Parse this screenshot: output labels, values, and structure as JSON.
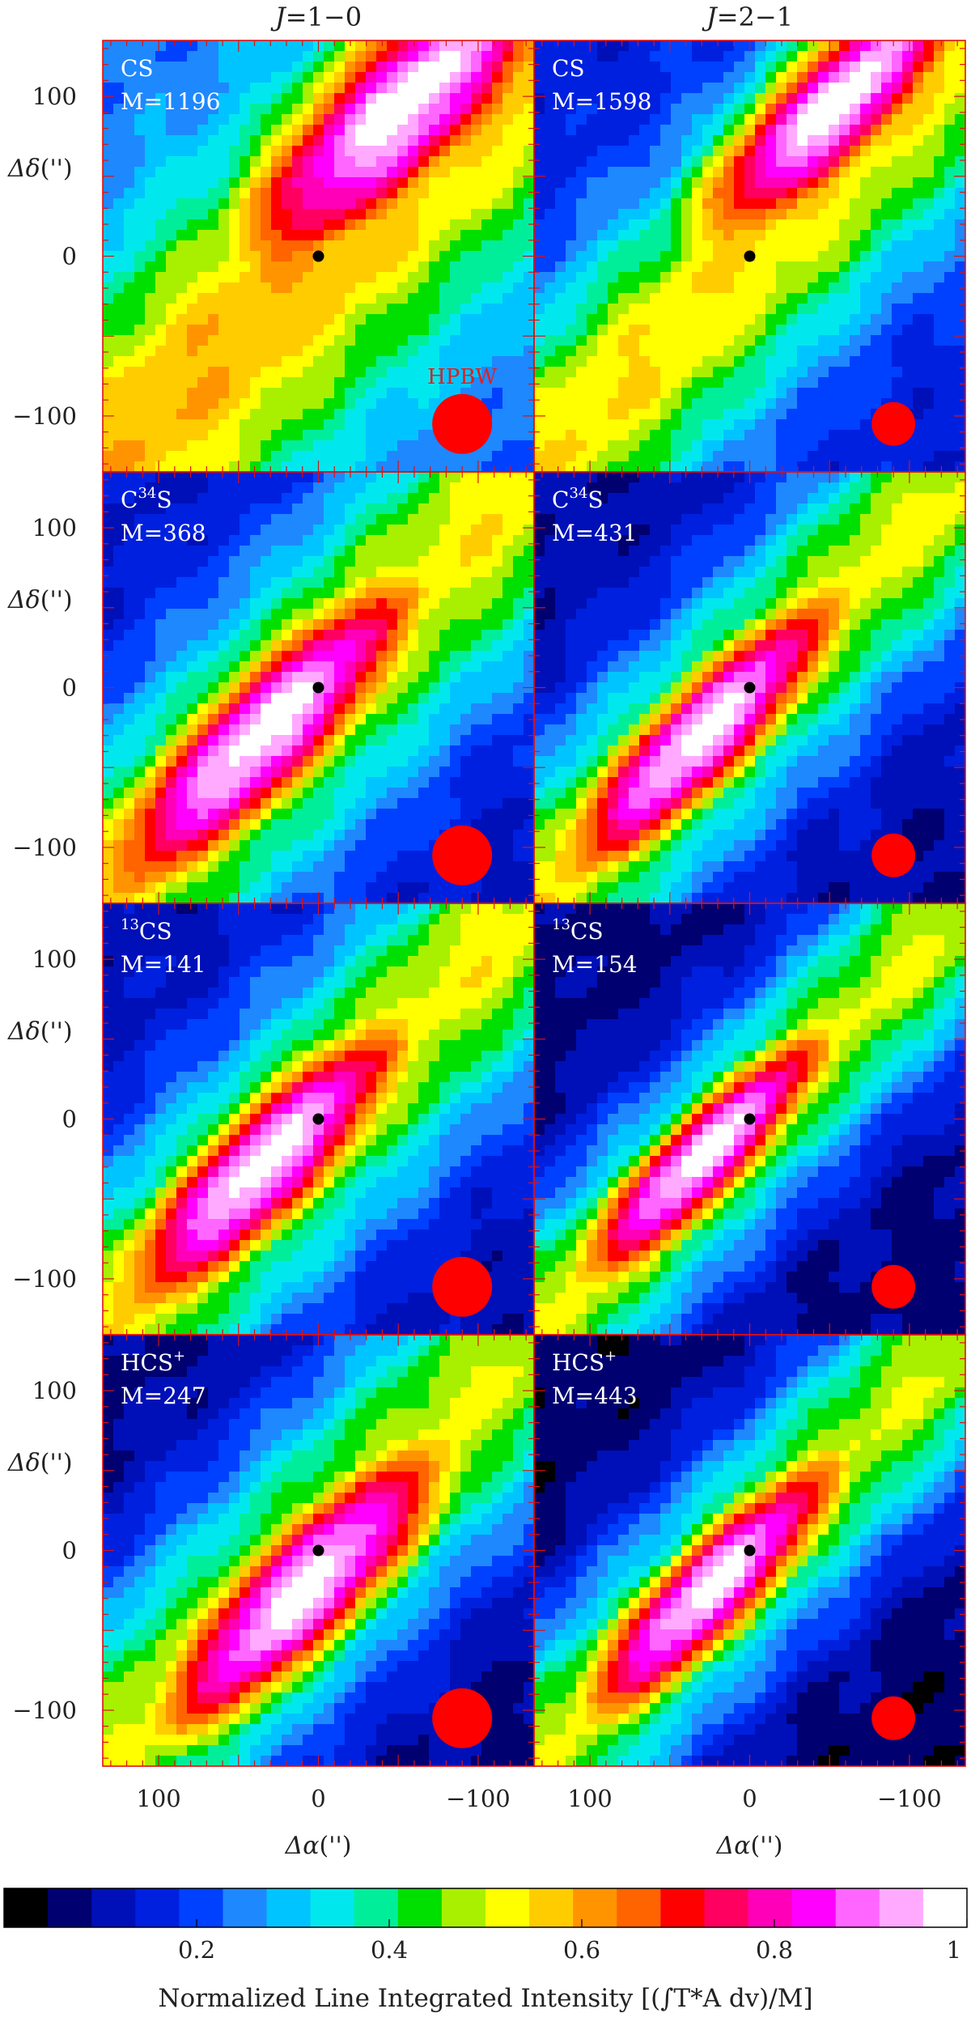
{
  "columns": [
    {
      "prefix": "J",
      "value": "=1−0"
    },
    {
      "prefix": "J",
      "value": "=2−1"
    }
  ],
  "y_axis": {
    "label_main": "Δδ",
    "label_unit": "('')",
    "ticks": [
      "100",
      "0",
      "−100"
    ]
  },
  "x_axis": {
    "label_main": "Δα",
    "label_unit": "('')",
    "ticks": [
      "100",
      "0",
      "−100"
    ]
  },
  "beam_label": "HPBW",
  "panels": [
    {
      "line": "CS",
      "iso_mass": "",
      "iso_sup": "",
      "rest": "",
      "m_label": "M=1196",
      "transition": "J=1−0",
      "peak": [
        -55,
        95
      ],
      "spread_major": 110,
      "spread_minor": 34,
      "background": 0.45
    },
    {
      "line": "CS",
      "iso_mass": "",
      "iso_sup": "",
      "rest": "",
      "m_label": "M=1598",
      "transition": "J=2−1",
      "peak": [
        -55,
        95
      ],
      "spread_major": 95,
      "spread_minor": 28,
      "background": 0.3
    },
    {
      "line": "C",
      "iso_mass": "",
      "iso_sup": "34",
      "rest": "S",
      "m_label": "M=368",
      "transition": "J=1−0",
      "peak": [
        35,
        -30
      ],
      "spread_major": 115,
      "spread_minor": 30,
      "background": 0.25
    },
    {
      "line": "C",
      "iso_mass": "",
      "iso_sup": "34",
      "rest": "S",
      "m_label": "M=431",
      "transition": "J=2−1",
      "peak": [
        30,
        -30
      ],
      "spread_major": 105,
      "spread_minor": 25,
      "background": 0.2
    },
    {
      "line": "CS",
      "iso_mass": "13",
      "iso_sup": "",
      "rest": "",
      "m_label": "M=141",
      "transition": "J=1−0",
      "peak": [
        35,
        -30
      ],
      "spread_major": 105,
      "spread_minor": 28,
      "background": 0.22
    },
    {
      "line": "CS",
      "iso_mass": "13",
      "iso_sup": "",
      "rest": "",
      "m_label": "M=154",
      "transition": "J=2−1",
      "peak": [
        30,
        -25
      ],
      "spread_major": 95,
      "spread_minor": 22,
      "background": 0.15
    },
    {
      "line": "HCS",
      "iso_mass": "",
      "iso_sup": "+",
      "rest": "",
      "m_label": "M=247",
      "transition": "J=1−0",
      "peak": [
        10,
        -25
      ],
      "spread_major": 110,
      "spread_minor": 30,
      "background": 0.15
    },
    {
      "line": "HCS",
      "iso_mass": "",
      "iso_sup": "+",
      "rest": "",
      "m_label": "M=443",
      "transition": "J=2−1",
      "peak": [
        25,
        -25
      ],
      "spread_major": 100,
      "spread_minor": 24,
      "background": 0.12
    }
  ],
  "colorbar": {
    "ticks": [
      "0.2",
      "0.4",
      "0.6",
      "0.8",
      "1"
    ],
    "tick_values": [
      0.2,
      0.4,
      0.6,
      0.8,
      1.0
    ],
    "range": [
      0.0,
      1.0
    ],
    "title": "Normalized Line Integrated Intensity [(∫T*A dv)/M]",
    "colors": [
      "#000000",
      "#000070",
      "#0010b8",
      "#0020e0",
      "#0040ff",
      "#1e88ff",
      "#00c4ff",
      "#00e8ee",
      "#00ee9a",
      "#00e000",
      "#a8f000",
      "#ffff00",
      "#ffcc00",
      "#ff9400",
      "#ff6400",
      "#ff0000",
      "#ff0060",
      "#ff00b8",
      "#ff00ff",
      "#ff66ff",
      "#ffaaff",
      "#ffffff"
    ]
  },
  "chart_data": {
    "type": "heatmap",
    "title": "",
    "xlabel": "Δα ('')",
    "ylabel": "Δδ ('')",
    "xlim": [
      135,
      -135
    ],
    "ylim": [
      -135,
      135
    ],
    "x_ticks": [
      100,
      0,
      -100
    ],
    "y_ticks": [
      100,
      0,
      -100
    ],
    "value_range": [
      0.0,
      1.0
    ],
    "grid": false,
    "legend": "colorbar-bottom",
    "panels": [
      "CS J=1−0",
      "CS J=2−1",
      "C34S J=1−0",
      "C34S J=2−1",
      "13CS J=1−0",
      "13CS J=2−1",
      "HCS+ J=1−0",
      "HCS+ J=2−1"
    ]
  }
}
